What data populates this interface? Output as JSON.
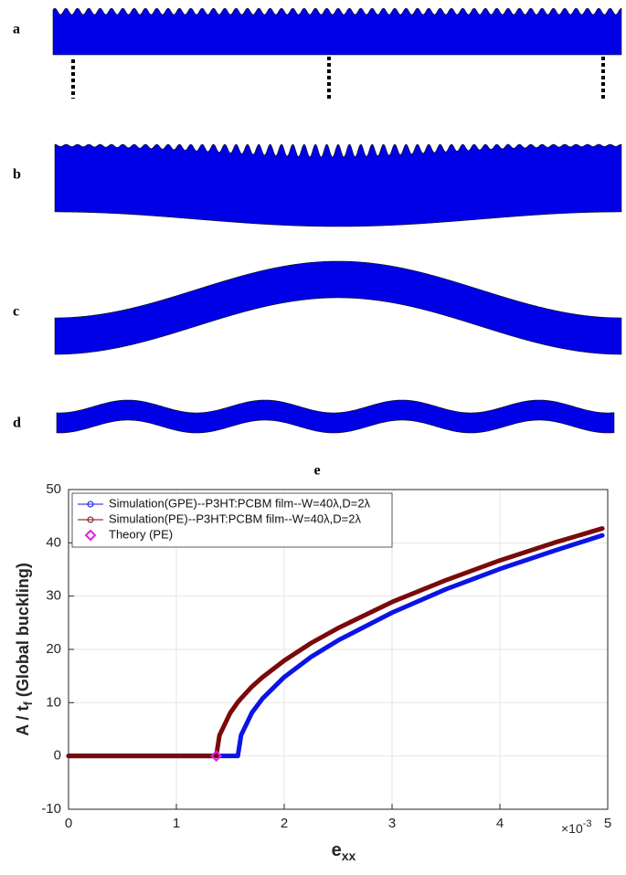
{
  "panel_labels": [
    "a",
    "b",
    "c",
    "d"
  ],
  "chart_data": {
    "type": "line",
    "title": "e",
    "xlabel": "e",
    "xlabel_sub": "xx",
    "ylabel": "A / t",
    "ylabel_sub": "f",
    "ylabel_rest": " (Global buckling)",
    "x_multiplier": "×10",
    "x_multiplier_exp": "-3",
    "x": [
      0,
      0.5,
      1,
      1.3,
      1.37,
      1.4,
      1.5,
      1.57,
      1.6,
      1.7,
      1.8,
      2,
      2.25,
      2.5,
      3,
      3.5,
      4,
      4.5,
      4.95
    ],
    "series": [
      {
        "name": "Simulation(GPE)--P3HT:PCBM film--W=40λ,D=2λ",
        "color": "#0a14e6",
        "values": [
          0,
          0,
          0,
          0,
          0,
          0,
          0,
          0,
          3.9,
          8.1,
          10.8,
          14.8,
          18.6,
          21.7,
          26.9,
          31.3,
          35.1,
          38.5,
          41.4
        ]
      },
      {
        "name": "Simulation(PE)--P3HT:PCBM film--W=40λ,D=2λ",
        "color": "#7a0a0a",
        "values": [
          0,
          0,
          0,
          0,
          0,
          3.9,
          8.1,
          10.1,
          10.8,
          13.0,
          14.8,
          17.9,
          21.2,
          24.0,
          28.9,
          33.0,
          36.7,
          40.0,
          42.7
        ]
      },
      {
        "name": "Theory (PE)",
        "color": "#e020e0",
        "marker": "diamond",
        "x": [
          1.37
        ],
        "values": [
          0
        ]
      }
    ],
    "xlim": [
      0,
      5
    ],
    "xticks": [
      0,
      1,
      2,
      3,
      4,
      5
    ],
    "ylim": [
      -10,
      50
    ],
    "yticks": [
      -10,
      0,
      10,
      20,
      30,
      40,
      50
    ],
    "grid": true,
    "legend": "upper left"
  }
}
